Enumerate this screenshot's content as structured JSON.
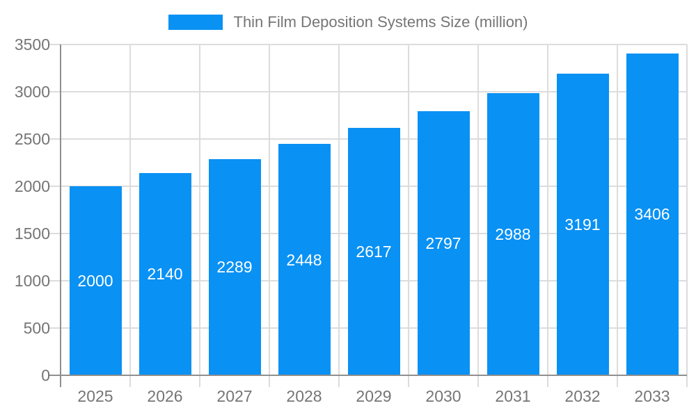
{
  "chart_data": {
    "type": "bar",
    "title": "Thin Film Deposition Systems Size (million)",
    "categories": [
      "2025",
      "2026",
      "2027",
      "2028",
      "2029",
      "2030",
      "2031",
      "2032",
      "2033"
    ],
    "series": [
      {
        "name": "Thin Film Deposition Systems Size (million)",
        "values": [
          2000,
          2140,
          2289,
          2448,
          2617,
          2797,
          2988,
          3191,
          3406
        ]
      }
    ],
    "xlabel": "",
    "ylabel": "",
    "ylim": [
      0,
      3500
    ],
    "ytick_step": 500,
    "yticks": [
      0,
      500,
      1000,
      1500,
      2000,
      2500,
      3000,
      3500
    ],
    "grid": true,
    "legend_position": "top-center",
    "show_value_labels": true,
    "colors": {
      "bar": "#0991F4",
      "value_label": "#FFFFFF",
      "axis_line": "#8F8F8F",
      "gridline": "#DCDCDC",
      "tick_label": "#757575",
      "background": "#FFFFFF"
    }
  },
  "legend": {
    "label": "Thin Film Deposition Systems Size (million)"
  }
}
